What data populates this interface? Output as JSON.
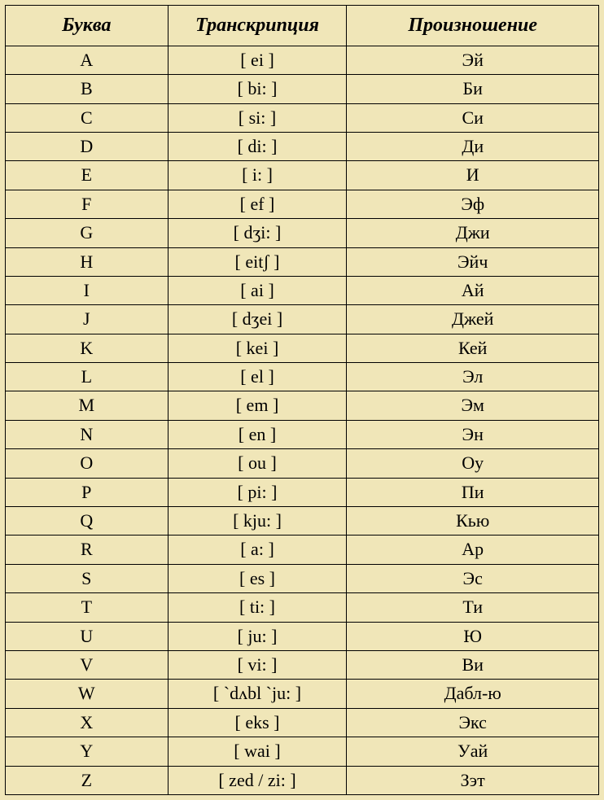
{
  "table": {
    "background_color": "#f0e6b8",
    "border_color": "#000000",
    "header_fontsize": 24,
    "cell_fontsize": 22,
    "headers": {
      "letter": "Буква",
      "transcription": "Транскрипция",
      "pronunciation": "Произношение"
    },
    "rows": [
      {
        "letter": "A",
        "transcription": "[ ei ]",
        "pronunciation": "Эй"
      },
      {
        "letter": "B",
        "transcription": "[ bi: ]",
        "pronunciation": "Би"
      },
      {
        "letter": "C",
        "transcription": "[ si: ]",
        "pronunciation": "Си"
      },
      {
        "letter": "D",
        "transcription": "[ di: ]",
        "pronunciation": "Ди"
      },
      {
        "letter": "E",
        "transcription": "[ i: ]",
        "pronunciation": "И"
      },
      {
        "letter": "F",
        "transcription": "[ ef ]",
        "pronunciation": "Эф"
      },
      {
        "letter": "G",
        "transcription": "[ dʒi: ]",
        "pronunciation": "Джи"
      },
      {
        "letter": "H",
        "transcription": "[ eitʃ ]",
        "pronunciation": "Эйч"
      },
      {
        "letter": "I",
        "transcription": "[ ai ]",
        "pronunciation": "Ай"
      },
      {
        "letter": "J",
        "transcription": "[ dʒei ]",
        "pronunciation": "Джей"
      },
      {
        "letter": "K",
        "transcription": "[ kei ]",
        "pronunciation": "Кей"
      },
      {
        "letter": "L",
        "transcription": "[ el ]",
        "pronunciation": "Эл"
      },
      {
        "letter": "M",
        "transcription": "[ em ]",
        "pronunciation": "Эм"
      },
      {
        "letter": "N",
        "transcription": "[ en ]",
        "pronunciation": "Эн"
      },
      {
        "letter": "O",
        "transcription": "[ ou ]",
        "pronunciation": "Оу"
      },
      {
        "letter": "P",
        "transcription": "[ pi: ]",
        "pronunciation": "Пи"
      },
      {
        "letter": "Q",
        "transcription": "[ kju: ]",
        "pronunciation": "Кью"
      },
      {
        "letter": "R",
        "transcription": "[ a: ]",
        "pronunciation": "Ар"
      },
      {
        "letter": "S",
        "transcription": "[ es ]",
        "pronunciation": "Эс"
      },
      {
        "letter": "T",
        "transcription": "[ ti: ]",
        "pronunciation": "Ти"
      },
      {
        "letter": "U",
        "transcription": "[ ju: ]",
        "pronunciation": "Ю"
      },
      {
        "letter": "V",
        "transcription": "[ vi: ]",
        "pronunciation": "Ви"
      },
      {
        "letter": "W",
        "transcription": "[ `dʌbl `ju: ]",
        "pronunciation": "Дабл-ю"
      },
      {
        "letter": "X",
        "transcription": "[ eks ]",
        "pronunciation": "Экс"
      },
      {
        "letter": "Y",
        "transcription": "[ wai ]",
        "pronunciation": "Уай"
      },
      {
        "letter": "Z",
        "transcription": "[ zed / zi: ]",
        "pronunciation": "Зэт"
      }
    ]
  }
}
